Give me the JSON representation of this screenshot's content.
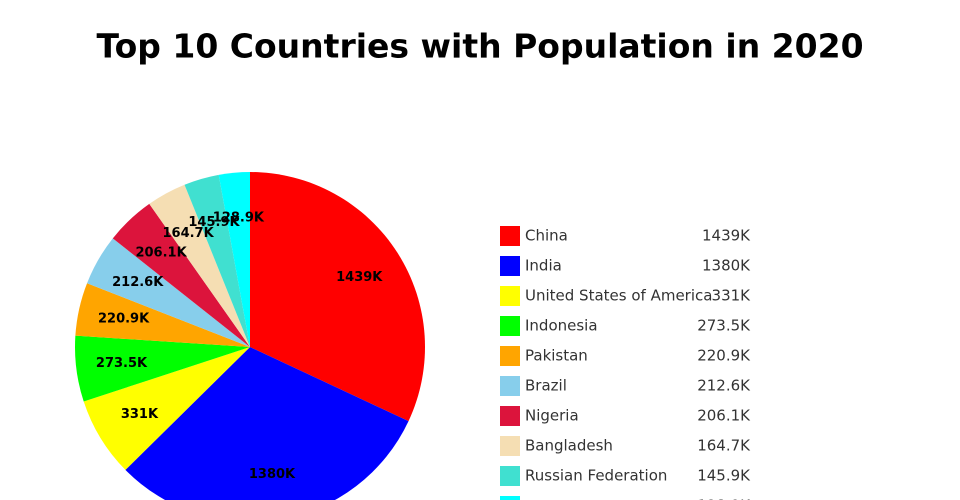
{
  "chart_data": {
    "type": "pie",
    "title": "Top 10 Countries with Population in 2020",
    "categories": [
      "China",
      "India",
      "United States of America",
      "Indonesia",
      "Pakistan",
      "Brazil",
      "Nigeria",
      "Bangladesh",
      "Russian Federation",
      null
    ],
    "values": [
      1439,
      1380,
      331,
      273.5,
      220.9,
      212.6,
      206.1,
      164.7,
      145.9,
      128.9
    ],
    "value_labels": [
      "1439K",
      "1380K",
      "331K",
      "273.5K",
      "220.9K",
      "212.6K",
      "206.1K",
      "164.7K",
      "145.9K",
      "128.9K"
    ],
    "colors": [
      "#ff0000",
      "#0000ff",
      "#ffff00",
      "#00ff00",
      "#ffa500",
      "#87ceeb",
      "#dc143c",
      "#f5deb3",
      "#40e0d0",
      "#00ffff"
    ],
    "legend": "right"
  }
}
